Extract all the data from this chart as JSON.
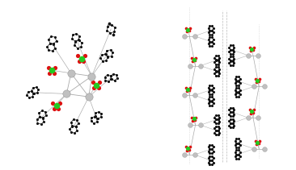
{
  "background_color": "#ffffff",
  "fig_width": 3.66,
  "fig_height": 2.11,
  "dpi": 100,
  "bond_color": "#aaaaaa",
  "silver_color": "#c0c0c0",
  "green_color": "#22cc22",
  "red_color": "#dd1111",
  "black_color": "#111111",
  "bond_lw": 0.6,
  "ring_lw": 0.5
}
